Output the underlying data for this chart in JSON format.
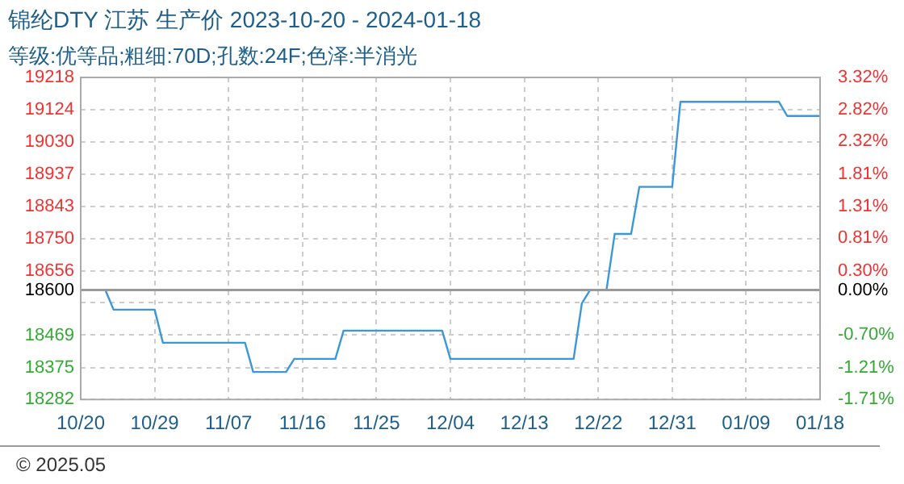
{
  "chart_data": {
    "type": "line",
    "title": "锦纶DTY 江苏 生产价 2023-10-20 - 2024-01-18",
    "subtitle": "等级:优等品;粗细:70D;孔数:24F;色泽:半消光",
    "annotations": [
      "© 2025.05"
    ],
    "x": [
      "2023-10-20",
      "2023-10-23",
      "2023-10-24",
      "2023-10-29",
      "2023-10-30",
      "2023-11-09",
      "2023-11-10",
      "2023-11-14",
      "2023-11-15",
      "2023-11-20",
      "2023-11-21",
      "2023-12-03",
      "2023-12-04",
      "2023-12-19",
      "2023-12-20",
      "2023-12-21",
      "2023-12-23",
      "2023-12-24",
      "2023-12-26",
      "2023-12-27",
      "2023-12-31",
      "2024-01-01",
      "2024-01-13",
      "2024-01-14",
      "2024-01-18"
    ],
    "series": [
      {
        "color": "#3a98d8",
        "values": [
          18600,
          18600,
          18543,
          18543,
          18447,
          18447,
          18362,
          18362,
          18400,
          18400,
          18482,
          18482,
          18400,
          18400,
          18561,
          18600,
          18600,
          18763,
          18763,
          18900,
          18900,
          19147,
          19147,
          19106,
          19106
        ]
      }
    ],
    "xlim": [
      "2023-10-20",
      "2024-01-18"
    ],
    "xticks": [
      {
        "value": "2023-10-20",
        "label": "10/20"
      },
      {
        "value": "2023-10-29",
        "label": "10/29"
      },
      {
        "value": "2023-11-07",
        "label": "11/07"
      },
      {
        "value": "2023-11-16",
        "label": "11/16"
      },
      {
        "value": "2023-11-25",
        "label": "11/25"
      },
      {
        "value": "2023-12-04",
        "label": "12/04"
      },
      {
        "value": "2023-12-13",
        "label": "12/13"
      },
      {
        "value": "2023-12-22",
        "label": "12/22"
      },
      {
        "value": "2023-12-31",
        "label": "12/31"
      },
      {
        "value": "2024-01-09",
        "label": "01/09"
      },
      {
        "value": "2024-01-18",
        "label": "01/18"
      }
    ],
    "ylim": [
      18282,
      19218
    ],
    "yticks": [
      18282,
      18375,
      18469,
      {
        "value": 18563,
        "label": null
      },
      18600,
      18656,
      18750,
      18843,
      18937,
      19030,
      19124,
      19218
    ],
    "y2lim": [
      -1.71,
      3.32
    ],
    "y2ticks": [
      {
        "value": -1.71,
        "label": "-1.71%"
      },
      {
        "value": -1.21,
        "label": "-1.21%"
      },
      {
        "value": -0.7,
        "label": "-0.70%"
      },
      {
        "value": -0.2,
        "label": null
      },
      {
        "value": 0,
        "label": "0.00%"
      },
      {
        "value": 0.3,
        "label": "0.30%"
      },
      {
        "value": 0.81,
        "label": "0.81%"
      },
      {
        "value": 1.31,
        "label": "1.31%"
      },
      {
        "value": 1.81,
        "label": "1.81%"
      },
      {
        "value": 2.32,
        "label": "2.32%"
      },
      {
        "value": 2.82,
        "label": "2.82%"
      },
      {
        "value": 3.32,
        "label": "3.32%"
      }
    ],
    "ref_lines": [
      {
        "axis": "y",
        "value": 18600,
        "color": "#999999"
      }
    ],
    "grid": true,
    "legend": false,
    "marker": "none",
    "line_style": "solid"
  }
}
